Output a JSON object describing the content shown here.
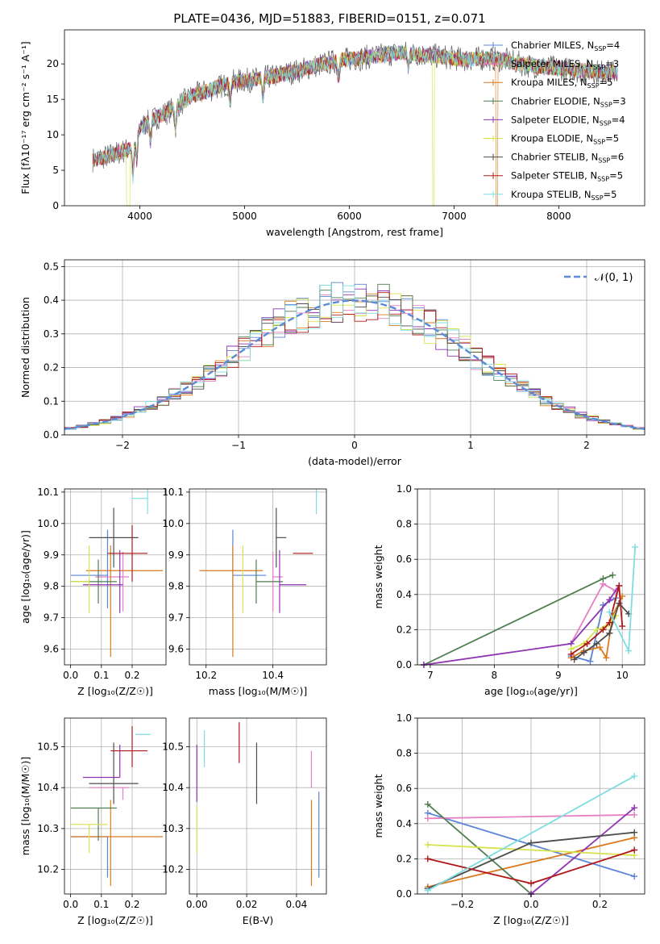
{
  "chart_data": [
    {
      "id": "spectrum",
      "type": "line",
      "title": "PLATE=0436, MJD=51883, FIBERID=0151, z=0.071",
      "xlabel": "wavelength [Angstrom, rest frame]",
      "ylabel": "Flux [fλ10⁻¹⁷ erg cm⁻² s⁻¹ A⁻¹]",
      "xlim": [
        3280,
        8820
      ],
      "ylim": [
        0,
        24.8
      ],
      "xticks": [
        4000,
        5000,
        6000,
        7000,
        8000
      ],
      "yticks": [
        0,
        5,
        10,
        15,
        20
      ],
      "continuum": {
        "x": [
          3550,
          3700,
          3900,
          4000,
          4100,
          4300,
          4500,
          4700,
          4900,
          5100,
          5300,
          5500,
          5700,
          5900,
          6100,
          6300,
          6500,
          6700,
          6900,
          7100,
          7300,
          7500,
          7700,
          7900,
          8100,
          8300,
          8500
        ],
        "y": [
          6.5,
          7.0,
          8.0,
          11.0,
          12.0,
          13.5,
          15.5,
          16.5,
          17.5,
          17.8,
          18.3,
          19.0,
          19.8,
          20.5,
          20.8,
          21.2,
          21.6,
          21.3,
          21.0,
          20.6,
          20.8,
          20.5,
          19.8,
          19.5,
          19.2,
          19.0,
          18.8
        ]
      },
      "series_colors": [
        "#5b84d8",
        "#e67fc3",
        "#d97a1f",
        "#4f7f50",
        "#8e35b2",
        "#d6e34a",
        "#4d4d4d",
        "#b01818",
        "#7fdde0"
      ],
      "legend": {
        "position": "right",
        "items": [
          {
            "label": "Chabrier MILES, N",
            "sub": "SSP",
            "suffix": "=4",
            "color": "#5b84d8"
          },
          {
            "label": "Salpeter MILES, N",
            "sub": "SSP",
            "suffix": "=3",
            "color": "#e67fc3"
          },
          {
            "label": "Kroupa MILES, N",
            "sub": "SSP",
            "suffix": "=5",
            "color": "#d97a1f"
          },
          {
            "label": "Chabrier ELODIE, N",
            "sub": "SSP",
            "suffix": "=3",
            "color": "#4f7f50"
          },
          {
            "label": "Salpeter ELODIE, N",
            "sub": "SSP",
            "suffix": "=4",
            "color": "#8e35b2"
          },
          {
            "label": "Kroupa ELODIE, N",
            "sub": "SSP",
            "suffix": "=5",
            "color": "#d6e34a"
          },
          {
            "label": "Chabrier STELIB, N",
            "sub": "SSP",
            "suffix": "=6",
            "color": "#4d4d4d"
          },
          {
            "label": "Salpeter STELIB, N",
            "sub": "SSP",
            "suffix": "=5",
            "color": "#b01818"
          },
          {
            "label": "Kroupa STELIB, N",
            "sub": "SSP",
            "suffix": "=5",
            "color": "#7fdde0"
          }
        ]
      }
    },
    {
      "id": "residuals",
      "type": "histogram",
      "xlabel": "(data-model)/error",
      "ylabel": "Normed distribution",
      "xlim": [
        -2.5,
        2.5
      ],
      "ylim": [
        0,
        0.52
      ],
      "xticks": [
        -2,
        -1,
        0,
        1,
        2
      ],
      "yticks": [
        0.0,
        0.1,
        0.2,
        0.3,
        0.4,
        0.5
      ],
      "grid": true,
      "bin_width": 0.1,
      "reference": {
        "label": "𝒩(0, 1)",
        "style": "dashed",
        "color": "#5b8bd6",
        "mean": 0,
        "sigma": 1
      }
    },
    {
      "id": "age-vs-Z",
      "type": "errorbar",
      "xlabel": "Z [log₁₀(Z/Z☉)]",
      "ylabel": "age  [log₁₀(age/yr)]",
      "xlim": [
        -0.02,
        0.31
      ],
      "ylim": [
        9.55,
        10.11
      ],
      "xticks": [
        0.0,
        0.1,
        0.2
      ],
      "yticks": [
        9.6,
        9.7,
        9.8,
        9.9,
        10.0,
        10.1
      ],
      "grid": true,
      "points": [
        {
          "x": 0.12,
          "xerr": [
            0.12,
            0.0
          ],
          "y": 9.835,
          "yerr": [
            0.105,
            0.145
          ]
        },
        {
          "x": 0.17,
          "xerr": [
            0.09,
            0.02
          ],
          "y": 9.83,
          "yerr": [
            0.11,
            0.08
          ]
        },
        {
          "x": 0.13,
          "xerr": [
            0.08,
            0.17
          ],
          "y": 9.85,
          "yerr": [
            0.275,
            0.08
          ]
        },
        {
          "x": 0.09,
          "xerr": [
            0.09,
            0.06
          ],
          "y": 9.815,
          "yerr": [
            0.07,
            0.07
          ]
        },
        {
          "x": 0.16,
          "xerr": [
            0.12,
            0.01
          ],
          "y": 9.805,
          "yerr": [
            0.09,
            0.11
          ]
        },
        {
          "x": 0.06,
          "xerr": [
            0.06,
            0.0
          ],
          "y": 9.815,
          "yerr": [
            0.1,
            0.115
          ]
        },
        {
          "x": 0.14,
          "xerr": [
            0.08,
            0.08
          ],
          "y": 9.955,
          "yerr": [
            0.095,
            0.095
          ]
        },
        {
          "x": 0.2,
          "xerr": [
            0.08,
            0.05
          ],
          "y": 9.905,
          "yerr": [
            0.09,
            0.09
          ]
        },
        {
          "x": 0.25,
          "xerr": [
            0.05,
            0.0
          ],
          "y": 10.08,
          "yerr": [
            0.05,
            0.03
          ]
        }
      ]
    },
    {
      "id": "age-vs-mass",
      "type": "errorbar",
      "xlabel": "mass [log₁₀(M/M☉)]",
      "xlim": [
        10.15,
        10.56
      ],
      "ylim": [
        9.55,
        10.11
      ],
      "xticks": [
        10.2,
        10.4
      ],
      "yticks": [
        9.6,
        9.7,
        9.8,
        9.9,
        10.0,
        10.1
      ],
      "grid": true,
      "points": [
        {
          "x": 10.28,
          "xerr": [
            0.0,
            0.1
          ],
          "y": 9.835,
          "yerr": [
            0.105,
            0.145
          ]
        },
        {
          "x": 10.4,
          "xerr": [
            0.0,
            0.03
          ],
          "y": 9.83,
          "yerr": [
            0.11,
            0.08
          ]
        },
        {
          "x": 10.28,
          "xerr": [
            0.1,
            0.09
          ],
          "y": 9.85,
          "yerr": [
            0.275,
            0.08
          ]
        },
        {
          "x": 10.35,
          "xerr": [
            0.0,
            0.08
          ],
          "y": 9.815,
          "yerr": [
            0.07,
            0.07
          ]
        },
        {
          "x": 10.42,
          "xerr": [
            0.0,
            0.08
          ],
          "y": 9.805,
          "yerr": [
            0.09,
            0.11
          ]
        },
        {
          "x": 10.31,
          "xerr": [
            0.0,
            0.0
          ],
          "y": 9.815,
          "yerr": [
            0.1,
            0.115
          ]
        },
        {
          "x": 10.41,
          "xerr": [
            0.0,
            0.03
          ],
          "y": 9.955,
          "yerr": [
            0.095,
            0.095
          ]
        },
        {
          "x": 10.49,
          "xerr": [
            0.03,
            0.03
          ],
          "y": 9.905,
          "yerr": [
            0.0,
            0.0
          ]
        },
        {
          "x": 10.53,
          "xerr": [
            0.0,
            0.0
          ],
          "y": 10.08,
          "yerr": [
            0.05,
            0.03
          ]
        }
      ]
    },
    {
      "id": "weight-vs-age",
      "type": "line",
      "xlabel": "age  [log₁₀(age/yr)]",
      "ylabel": "mass weight",
      "xlim": [
        6.8,
        10.35
      ],
      "ylim": [
        0,
        1
      ],
      "xticks": [
        7,
        8,
        9,
        10
      ],
      "yticks": [
        0.0,
        0.2,
        0.4,
        0.6,
        0.8,
        1.0
      ],
      "grid": true,
      "series": [
        {
          "x": [
            9.2,
            9.5,
            9.7,
            9.9
          ],
          "y": [
            0.05,
            0.02,
            0.34,
            0.38
          ]
        },
        {
          "x": [
            9.2,
            9.7,
            9.9
          ],
          "y": [
            0.12,
            0.46,
            0.42
          ]
        },
        {
          "x": [
            9.2,
            9.4,
            9.65,
            9.75,
            9.85,
            10.0
          ],
          "y": [
            0.04,
            0.08,
            0.1,
            0.04,
            0.28,
            0.39
          ]
        },
        {
          "x": [
            6.9,
            9.7,
            9.85
          ],
          "y": [
            0.0,
            0.49,
            0.51
          ]
        },
        {
          "x": [
            6.9,
            9.2,
            9.8,
            9.95
          ],
          "y": [
            0.0,
            0.12,
            0.37,
            0.45
          ]
        },
        {
          "x": [
            9.2,
            9.4,
            9.6,
            9.75,
            9.9
          ],
          "y": [
            0.09,
            0.12,
            0.2,
            0.22,
            0.28
          ]
        },
        {
          "x": [
            9.25,
            9.4,
            9.6,
            9.8,
            9.95,
            10.1
          ],
          "y": [
            0.03,
            0.07,
            0.12,
            0.18,
            0.35,
            0.29
          ]
        },
        {
          "x": [
            9.2,
            9.45,
            9.7,
            9.8,
            9.95,
            10.0
          ],
          "y": [
            0.06,
            0.12,
            0.2,
            0.24,
            0.45,
            0.22
          ]
        },
        {
          "x": [
            9.8,
            10.1,
            10.2
          ],
          "y": [
            0.3,
            0.08,
            0.67
          ]
        }
      ]
    },
    {
      "id": "mass-vs-Z",
      "type": "errorbar",
      "xlabel": "Z [log₁₀(Z/Z☉)]",
      "ylabel": "mass [log₁₀(M/M☉)]",
      "xlim": [
        -0.02,
        0.31
      ],
      "ylim": [
        10.14,
        10.57
      ],
      "xticks": [
        0.0,
        0.1,
        0.2
      ],
      "yticks": [
        10.2,
        10.3,
        10.4,
        10.5
      ],
      "grid": true,
      "points": [
        {
          "x": 0.12,
          "xerr": [
            0.12,
            0.0
          ],
          "y": 10.28,
          "yerr": [
            0.1,
            0.0
          ]
        },
        {
          "x": 0.17,
          "xerr": [
            0.11,
            0.02
          ],
          "y": 10.4,
          "yerr": [
            0.03,
            0.0
          ]
        },
        {
          "x": 0.13,
          "xerr": [
            0.13,
            0.17
          ],
          "y": 10.28,
          "yerr": [
            0.12,
            0.09
          ]
        },
        {
          "x": 0.09,
          "xerr": [
            0.09,
            0.06
          ],
          "y": 10.35,
          "yerr": [
            0.08,
            0.0
          ]
        },
        {
          "x": 0.16,
          "xerr": [
            0.12,
            0.0
          ],
          "y": 10.425,
          "yerr": [
            0.0,
            0.08
          ]
        },
        {
          "x": 0.06,
          "xerr": [
            0.06,
            0.06
          ],
          "y": 10.31,
          "yerr": [
            0.07,
            0.0
          ]
        },
        {
          "x": 0.14,
          "xerr": [
            0.08,
            0.08
          ],
          "y": 10.41,
          "yerr": [
            0.05,
            0.1
          ]
        },
        {
          "x": 0.2,
          "xerr": [
            0.07,
            0.05
          ],
          "y": 10.49,
          "yerr": [
            0.04,
            0.06
          ]
        },
        {
          "x": 0.24,
          "xerr": [
            0.03,
            0.02
          ],
          "y": 10.53,
          "yerr": [
            0.0,
            0.0
          ]
        }
      ]
    },
    {
      "id": "mass-vs-EBV",
      "type": "errorbar",
      "xlabel": "E(B-V)",
      "xlim": [
        -0.003,
        0.052
      ],
      "ylim": [
        10.14,
        10.57
      ],
      "xticks": [
        0.0,
        0.02,
        0.04
      ],
      "yticks": [
        10.2,
        10.3,
        10.4,
        10.5
      ],
      "grid": true,
      "points": [
        {
          "x": 0.049,
          "y": 10.28,
          "yerr": [
            0.1,
            0.11
          ]
        },
        {
          "x": 0.046,
          "y": 10.4,
          "yerr": [
            0.0,
            0.09
          ]
        },
        {
          "x": 0.046,
          "y": 10.28,
          "yerr": [
            0.12,
            0.09
          ]
        },
        {
          "x": 0.0,
          "y": 10.35,
          "yerr": [
            0.0,
            0.0
          ]
        },
        {
          "x": 0.0,
          "y": 10.425,
          "yerr": [
            0.06,
            0.08
          ]
        },
        {
          "x": 0.0,
          "y": 10.31,
          "yerr": [
            0.07,
            0.045
          ]
        },
        {
          "x": 0.024,
          "y": 10.41,
          "yerr": [
            0.05,
            0.1
          ]
        },
        {
          "x": 0.017,
          "y": 10.5,
          "yerr": [
            0.04,
            0.06
          ]
        },
        {
          "x": 0.003,
          "y": 10.5,
          "yerr": [
            0.05,
            0.04
          ]
        }
      ]
    },
    {
      "id": "weight-vs-Z",
      "type": "line",
      "xlabel": "Z [log₁₀(Z/Z☉)]",
      "ylabel": "mass weight",
      "xlim": [
        -0.33,
        0.33
      ],
      "ylim": [
        0,
        1
      ],
      "xticks": [
        -0.2,
        0.0,
        0.2
      ],
      "yticks": [
        0.0,
        0.2,
        0.4,
        0.6,
        0.8,
        1.0
      ],
      "grid": true,
      "series": [
        {
          "x": [
            -0.3,
            0.3
          ],
          "y": [
            0.46,
            0.1
          ]
        },
        {
          "x": [
            -0.3,
            0.3
          ],
          "y": [
            0.43,
            0.45
          ]
        },
        {
          "x": [
            -0.3,
            0.3
          ],
          "y": [
            0.04,
            0.32
          ]
        },
        {
          "x": [
            -0.3,
            0.0
          ],
          "y": [
            0.51,
            0.0
          ]
        },
        {
          "x": [
            0.0,
            0.3
          ],
          "y": [
            0.0,
            0.49
          ]
        },
        {
          "x": [
            -0.3,
            0.3
          ],
          "y": [
            0.28,
            0.22
          ]
        },
        {
          "x": [
            -0.3,
            0.0,
            0.3
          ],
          "y": [
            0.03,
            0.29,
            0.35
          ]
        },
        {
          "x": [
            -0.3,
            0.0,
            0.3
          ],
          "y": [
            0.2,
            0.06,
            0.25
          ]
        },
        {
          "x": [
            -0.3,
            0.3
          ],
          "y": [
            0.02,
            0.67
          ]
        }
      ]
    }
  ]
}
